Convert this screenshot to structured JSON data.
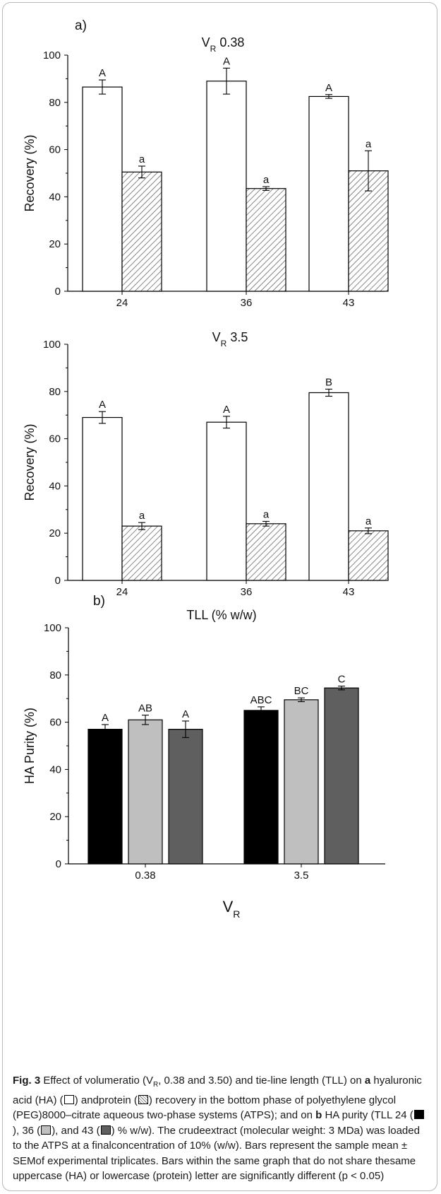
{
  "chart_data": [
    {
      "type": "bar",
      "panel_label": "a)",
      "title": "V",
      "title_sub": "R",
      "title_rest": " 0.38",
      "ylabel": "Recovery (%)",
      "xlabel": "",
      "ylim": [
        0,
        100
      ],
      "yticks": [
        0,
        20,
        40,
        60,
        80,
        100
      ],
      "categories": [
        "24",
        "36",
        "43"
      ],
      "series": [
        {
          "style": "white",
          "values": [
            86.5,
            89,
            82.5
          ],
          "errors": [
            3,
            5.5,
            0.8
          ],
          "letters": [
            "A",
            "A",
            "A"
          ]
        },
        {
          "style": "hatch",
          "values": [
            50.5,
            43.5,
            51
          ],
          "errors": [
            2.5,
            0.8,
            8.5
          ],
          "letters": [
            "a",
            "a",
            "a"
          ]
        }
      ]
    },
    {
      "type": "bar",
      "panel_label": "",
      "title": "V",
      "title_sub": "R",
      "title_rest": " 3.5",
      "ylabel": "Recovery (%)",
      "xlabel": "TLL (% w/w)",
      "ylim": [
        0,
        100
      ],
      "yticks": [
        0,
        20,
        40,
        60,
        80,
        100
      ],
      "categories": [
        "24",
        "36",
        "43"
      ],
      "series": [
        {
          "style": "white",
          "values": [
            69,
            67,
            79.5
          ],
          "errors": [
            2.5,
            2.5,
            1.5
          ],
          "letters": [
            "A",
            "A",
            "B"
          ]
        },
        {
          "style": "hatch",
          "values": [
            23,
            24,
            21
          ],
          "errors": [
            1.5,
            1,
            1.2
          ],
          "letters": [
            "a",
            "a",
            "a"
          ]
        }
      ]
    },
    {
      "type": "bar",
      "panel_label": "b)",
      "title": "",
      "ylabel": "HA Purity (%)",
      "xlabel": "V",
      "xlabel_sub": "R",
      "ylim": [
        0,
        100
      ],
      "yticks": [
        0,
        20,
        40,
        60,
        80,
        100
      ],
      "categories": [
        "0.38",
        "3.5"
      ],
      "series": [
        {
          "style": "black",
          "values": [
            57,
            65
          ],
          "errors": [
            2,
            1.5
          ],
          "letters": [
            "A",
            "ABC"
          ]
        },
        {
          "style": "light",
          "values": [
            61,
            69.5
          ],
          "errors": [
            2,
            0.8
          ],
          "letters": [
            "AB",
            "BC"
          ]
        },
        {
          "style": "dark",
          "values": [
            57,
            74.5
          ],
          "errors": [
            3.5,
            0.8
          ],
          "letters": [
            "A",
            "C"
          ]
        }
      ]
    }
  ],
  "caption": {
    "fig_label": "Fig. 3",
    "t1": "  Effect of volumeratio (V",
    "t1_sub": "R",
    "t2": ", 0.38 and 3.50) and tie-line length (TLL) on ",
    "b1": "a",
    "t3": " hyaluronic acid (HA) (",
    "t4": ") andprotein (",
    "t5": ") recovery in the bottom phase of polyethylene glycol (PEG)8000–citrate aqueous two-phase systems (ATPS); and on ",
    "b2": "b",
    "t6": " HA purity (TLL 24 (",
    "t7": "), 36 (",
    "t8": "), and 43 (",
    "t9": ") % w/w). The crudeextract (molecular weight: 3 MDa) was loaded to the ATPS at a finalconcentration of 10% (w/w). Bars represent the sample mean ± SEMof experimental triplicates. Bars within the same graph that do not share thesame uppercase (HA) or lowercase (protein) letter are significantly different (p < 0.05)"
  },
  "colors": {
    "white": "#ffffff",
    "hatch": "#6e6e6e",
    "black": "#000000",
    "light": "#bfbfbf",
    "dark": "#5f5f5f"
  }
}
